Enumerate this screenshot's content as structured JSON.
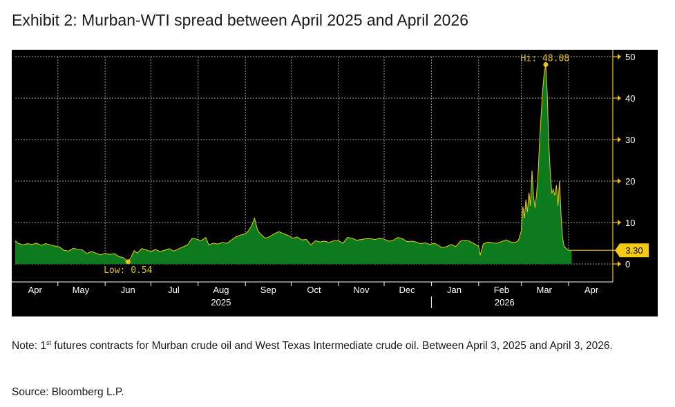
{
  "title": "Exhibit 2: Murban-WTI spread between April 2025 and April 2026",
  "note": {
    "prefix": "Note: 1",
    "superscript": "st",
    "text": " futures contracts for Murban crude oil and West Texas Intermediate crude oil. Between April 3, 2025 and April 3, 2026."
  },
  "source": "Source: Bloomberg L.P.",
  "colors": {
    "background": "#000000",
    "area_fill": "#0d7a1e",
    "line": "#d9c21a",
    "axis_gold": "#e6c21a",
    "grid": "#9a9a9a",
    "tick_text": "#ffffff",
    "badge_fill": "#f2cb12"
  },
  "chart_data": {
    "type": "area",
    "title": "",
    "xlabel": "",
    "ylabel": "",
    "ylim": [
      0,
      50
    ],
    "yticks": [
      0,
      10,
      20,
      30,
      40,
      50
    ],
    "ytick_labels": [
      "0",
      "10",
      "20",
      "30",
      "40",
      "50"
    ],
    "x_start": "2025-04-03",
    "x_end": "2026-04-30",
    "grid": true,
    "month_ticks": [
      {
        "label": "Apr",
        "date": "2025-04-16"
      },
      {
        "label": "May",
        "date": "2025-05-16"
      },
      {
        "label": "Jun",
        "date": "2025-06-16"
      },
      {
        "label": "Jul",
        "date": "2025-07-16"
      },
      {
        "label": "Aug",
        "date": "2025-08-16"
      },
      {
        "label": "Sep",
        "date": "2025-09-16"
      },
      {
        "label": "Oct",
        "date": "2025-10-16"
      },
      {
        "label": "Nov",
        "date": "2025-11-16"
      },
      {
        "label": "Dec",
        "date": "2025-12-16"
      },
      {
        "label": "Jan",
        "date": "2026-01-16"
      },
      {
        "label": "Feb",
        "date": "2026-02-16"
      },
      {
        "label": "Mar",
        "date": "2026-03-16"
      },
      {
        "label": "Apr",
        "date": "2026-04-16"
      }
    ],
    "month_separators": [
      "2025-05-01",
      "2025-06-01",
      "2025-07-01",
      "2025-08-01",
      "2025-09-01",
      "2025-10-01",
      "2025-11-01",
      "2025-12-01",
      "2026-01-01",
      "2026-02-01",
      "2026-03-01",
      "2026-04-01"
    ],
    "year_labels": [
      {
        "label": "2025",
        "date": "2025-08-16"
      },
      {
        "label": "2026",
        "date": "2026-02-18"
      }
    ],
    "year_separator": "2026-01-01",
    "annotations": {
      "high": {
        "label": "Hi: 48.08",
        "date": "2026-03-17",
        "value": 48.08
      },
      "low": {
        "label": "Low: 0.54",
        "date": "2025-06-16",
        "value": 0.54
      },
      "last": {
        "label": "3.30",
        "value": 3.3
      }
    },
    "series": [
      {
        "values": [
          [
            "2025-04-03",
            5.6
          ],
          [
            "2025-04-05",
            5.0
          ],
          [
            "2025-04-08",
            4.6
          ],
          [
            "2025-04-11",
            4.9
          ],
          [
            "2025-04-14",
            4.7
          ],
          [
            "2025-04-17",
            5.0
          ],
          [
            "2025-04-20",
            4.5
          ],
          [
            "2025-04-23",
            4.9
          ],
          [
            "2025-04-26",
            4.6
          ],
          [
            "2025-04-29",
            4.3
          ],
          [
            "2025-05-02",
            4.1
          ],
          [
            "2025-05-05",
            3.3
          ],
          [
            "2025-05-08",
            3.1
          ],
          [
            "2025-05-11",
            3.8
          ],
          [
            "2025-05-14",
            3.5
          ],
          [
            "2025-05-17",
            3.4
          ],
          [
            "2025-05-20",
            2.5
          ],
          [
            "2025-05-23",
            3.0
          ],
          [
            "2025-05-26",
            2.6
          ],
          [
            "2025-05-29",
            2.2
          ],
          [
            "2025-06-01",
            2.6
          ],
          [
            "2025-06-04",
            2.3
          ],
          [
            "2025-06-07",
            2.5
          ],
          [
            "2025-06-10",
            1.8
          ],
          [
            "2025-06-13",
            1.5
          ],
          [
            "2025-06-16",
            0.54
          ],
          [
            "2025-06-18",
            1.6
          ],
          [
            "2025-06-20",
            3.2
          ],
          [
            "2025-06-22",
            2.6
          ],
          [
            "2025-06-25",
            3.7
          ],
          [
            "2025-06-28",
            3.4
          ],
          [
            "2025-07-01",
            3.0
          ],
          [
            "2025-07-04",
            3.5
          ],
          [
            "2025-07-07",
            3.0
          ],
          [
            "2025-07-10",
            3.3
          ],
          [
            "2025-07-13",
            3.7
          ],
          [
            "2025-07-16",
            3.1
          ],
          [
            "2025-07-19",
            3.6
          ],
          [
            "2025-07-22",
            4.1
          ],
          [
            "2025-07-25",
            4.6
          ],
          [
            "2025-07-28",
            6.2
          ],
          [
            "2025-07-31",
            6.0
          ],
          [
            "2025-08-03",
            5.6
          ],
          [
            "2025-08-06",
            6.4
          ],
          [
            "2025-08-08",
            4.6
          ],
          [
            "2025-08-11",
            5.0
          ],
          [
            "2025-08-14",
            4.8
          ],
          [
            "2025-08-17",
            5.2
          ],
          [
            "2025-08-20",
            5.0
          ],
          [
            "2025-08-23",
            5.8
          ],
          [
            "2025-08-26",
            6.6
          ],
          [
            "2025-08-29",
            7.0
          ],
          [
            "2025-09-01",
            7.3
          ],
          [
            "2025-09-03",
            8.0
          ],
          [
            "2025-09-05",
            9.2
          ],
          [
            "2025-09-07",
            11.0
          ],
          [
            "2025-09-09",
            8.1
          ],
          [
            "2025-09-11",
            7.2
          ],
          [
            "2025-09-14",
            6.2
          ],
          [
            "2025-09-17",
            6.6
          ],
          [
            "2025-09-20",
            7.3
          ],
          [
            "2025-09-23",
            7.8
          ],
          [
            "2025-09-26",
            7.3
          ],
          [
            "2025-09-29",
            6.9
          ],
          [
            "2025-10-02",
            6.2
          ],
          [
            "2025-10-05",
            6.5
          ],
          [
            "2025-10-08",
            5.8
          ],
          [
            "2025-10-11",
            5.9
          ],
          [
            "2025-10-14",
            4.6
          ],
          [
            "2025-10-17",
            5.6
          ],
          [
            "2025-10-20",
            5.3
          ],
          [
            "2025-10-23",
            5.5
          ],
          [
            "2025-10-26",
            5.2
          ],
          [
            "2025-10-29",
            5.6
          ],
          [
            "2025-11-01",
            5.6
          ],
          [
            "2025-11-04",
            5.0
          ],
          [
            "2025-11-07",
            6.4
          ],
          [
            "2025-11-10",
            6.2
          ],
          [
            "2025-11-13",
            5.7
          ],
          [
            "2025-11-16",
            5.9
          ],
          [
            "2025-11-19",
            6.1
          ],
          [
            "2025-11-22",
            6.1
          ],
          [
            "2025-11-25",
            5.9
          ],
          [
            "2025-11-28",
            6.2
          ],
          [
            "2025-12-01",
            6.0
          ],
          [
            "2025-12-04",
            5.5
          ],
          [
            "2025-12-07",
            5.7
          ],
          [
            "2025-12-10",
            6.4
          ],
          [
            "2025-12-13",
            6.1
          ],
          [
            "2025-12-16",
            5.4
          ],
          [
            "2025-12-19",
            5.5
          ],
          [
            "2025-12-22",
            5.3
          ],
          [
            "2025-12-25",
            4.9
          ],
          [
            "2025-12-28",
            5.1
          ],
          [
            "2025-12-31",
            4.7
          ],
          [
            "2026-01-03",
            5.0
          ],
          [
            "2026-01-06",
            4.4
          ],
          [
            "2026-01-08",
            3.9
          ],
          [
            "2026-01-11",
            4.2
          ],
          [
            "2026-01-14",
            4.7
          ],
          [
            "2026-01-17",
            4.2
          ],
          [
            "2026-01-20",
            5.5
          ],
          [
            "2026-01-23",
            5.7
          ],
          [
            "2026-01-26",
            5.5
          ],
          [
            "2026-01-29",
            4.9
          ],
          [
            "2026-02-01",
            4.3
          ],
          [
            "2026-02-02",
            2.1
          ],
          [
            "2026-02-04",
            4.8
          ],
          [
            "2026-02-07",
            5.3
          ],
          [
            "2026-02-10",
            5.1
          ],
          [
            "2026-02-13",
            5.0
          ],
          [
            "2026-02-16",
            5.4
          ],
          [
            "2026-02-19",
            5.8
          ],
          [
            "2026-02-22",
            5.3
          ],
          [
            "2026-02-25",
            5.2
          ],
          [
            "2026-02-27",
            5.6
          ],
          [
            "2026-03-01",
            8.0
          ],
          [
            "2026-03-02",
            13.8
          ],
          [
            "2026-03-03",
            11.0
          ],
          [
            "2026-03-04",
            15.5
          ],
          [
            "2026-03-05",
            12.5
          ],
          [
            "2026-03-06",
            17.2
          ],
          [
            "2026-03-07",
            14.0
          ],
          [
            "2026-03-08",
            22.5
          ],
          [
            "2026-03-09",
            16.0
          ],
          [
            "2026-03-10",
            13.5
          ],
          [
            "2026-03-11",
            17.0
          ],
          [
            "2026-03-12",
            22.0
          ],
          [
            "2026-03-13",
            30.0
          ],
          [
            "2026-03-14",
            36.0
          ],
          [
            "2026-03-15",
            42.0
          ],
          [
            "2026-03-16",
            46.0
          ],
          [
            "2026-03-17",
            48.08
          ],
          [
            "2026-03-18",
            41.0
          ],
          [
            "2026-03-19",
            29.0
          ],
          [
            "2026-03-20",
            22.0
          ],
          [
            "2026-03-21",
            17.0
          ],
          [
            "2026-03-22",
            18.0
          ],
          [
            "2026-03-23",
            16.5
          ],
          [
            "2026-03-24",
            19.0
          ],
          [
            "2026-03-25",
            14.0
          ],
          [
            "2026-03-26",
            20.0
          ],
          [
            "2026-03-27",
            12.0
          ],
          [
            "2026-03-28",
            6.5
          ],
          [
            "2026-03-29",
            4.2
          ],
          [
            "2026-03-31",
            3.6
          ],
          [
            "2026-04-01",
            3.3
          ],
          [
            "2026-04-03",
            3.3
          ]
        ]
      }
    ]
  }
}
